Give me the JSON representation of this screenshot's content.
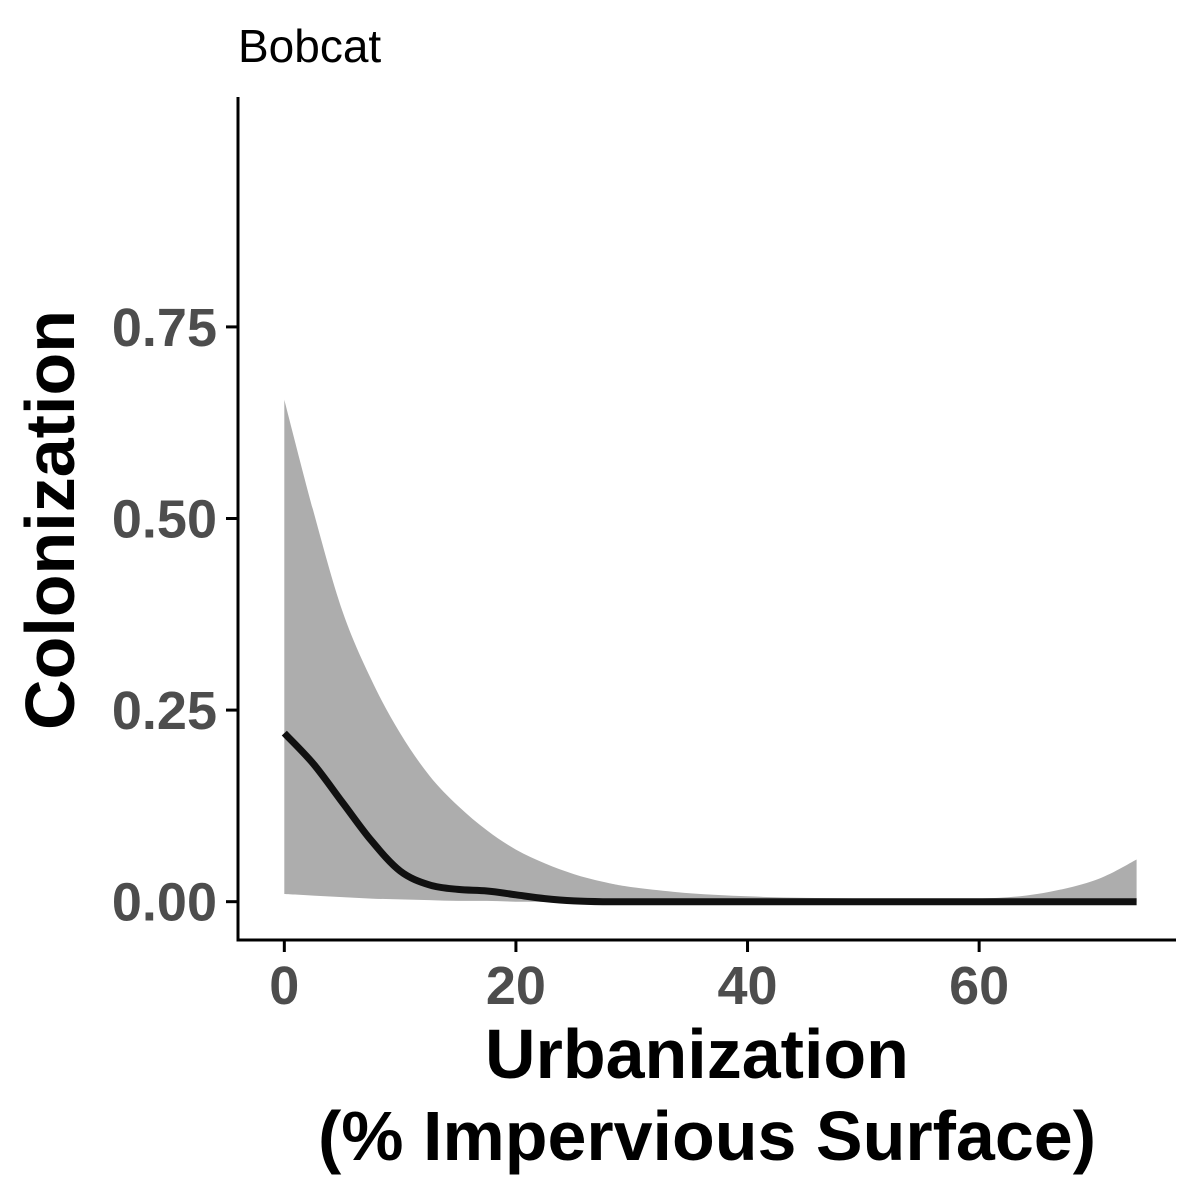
{
  "chart_data": {
    "type": "line",
    "title": "Bobcat",
    "xlabel": [
      "Urbanization",
      "(% Impervious Surface)"
    ],
    "ylabel": "Colonization",
    "xlim": [
      -4,
      77
    ],
    "ylim": [
      -0.05,
      1.05
    ],
    "x_ticks": [
      0,
      20,
      40,
      60
    ],
    "y_ticks": [
      0.0,
      0.25,
      0.5,
      0.75
    ],
    "x_tick_labels": [
      "0",
      "20",
      "40",
      "60"
    ],
    "y_tick_labels": [
      "0.00",
      "0.25",
      "0.50",
      "0.75"
    ],
    "grid": false,
    "legend": "none",
    "colors": {
      "line": "#111111",
      "ribbon": "#adadad",
      "axis": "#000000",
      "tick_label": "#4d4d4d"
    },
    "series": [
      {
        "x": [
          0,
          2.5,
          5,
          7.5,
          10,
          12.5,
          15,
          17.5,
          20,
          22.5,
          25,
          27.5,
          30,
          35,
          40,
          45,
          50,
          55,
          60,
          65,
          70,
          73.6
        ],
        "y": [
          0.22,
          0.18,
          0.13,
          0.08,
          0.04,
          0.022,
          0.016,
          0.014,
          0.009,
          0.004,
          0.001,
          0.0,
          0.0,
          0.0,
          0.0,
          0.0,
          0.0,
          0.0,
          0.0,
          0.0,
          0.0,
          0.0
        ],
        "lower": [
          0.01,
          0.008,
          0.006,
          0.004,
          0.003,
          0.002,
          0.001,
          0.001,
          0.0,
          0.0,
          0.0,
          0.0,
          0.0,
          0.0,
          0.0,
          0.0,
          0.0,
          0.0,
          0.0,
          0.0,
          0.0,
          0.0
        ],
        "upper": [
          0.655,
          0.51,
          0.38,
          0.29,
          0.22,
          0.165,
          0.125,
          0.093,
          0.068,
          0.05,
          0.036,
          0.026,
          0.019,
          0.011,
          0.007,
          0.005,
          0.004,
          0.004,
          0.004,
          0.01,
          0.028,
          0.055
        ]
      }
    ]
  }
}
